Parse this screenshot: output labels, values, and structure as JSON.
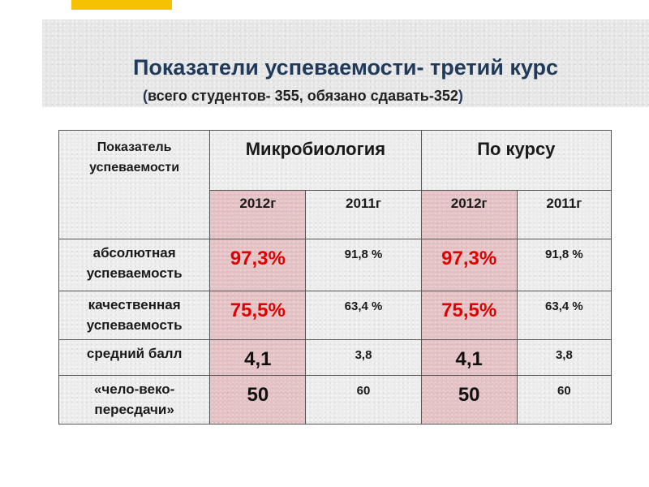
{
  "colors": {
    "accent_bar": "#f5c100",
    "title_text": "#1f3a5a",
    "highlight_value": "#e00000",
    "highlight_cell": "#e3b0b5"
  },
  "header": {
    "title": "Показатели успеваемости- третий курс",
    "subtitle": "всего студентов- 355, обязано сдавать-352"
  },
  "table": {
    "indicator_header": [
      "Показатель",
      "успеваемости"
    ],
    "groups": [
      "Микробиология",
      "По курсу"
    ],
    "years": [
      "2012г",
      "2011г",
      "2012г",
      "2011г"
    ],
    "rows": [
      {
        "label": [
          "абсолютная",
          "успеваемость"
        ],
        "values": [
          "97,3%",
          "91,8 %",
          "97,3%",
          "91,8 %"
        ]
      },
      {
        "label": [
          "качественная",
          "успеваемость"
        ],
        "values": [
          "75,5%",
          "63,4 %",
          "75,5%",
          "63,4 %"
        ]
      },
      {
        "label": [
          "средний балл"
        ],
        "values": [
          "4,1",
          "3,8",
          "4,1",
          "3,8"
        ]
      },
      {
        "label": [
          "«чело-веко-",
          "пересдачи»"
        ],
        "values": [
          "50",
          "60",
          "50",
          "60"
        ]
      }
    ]
  }
}
